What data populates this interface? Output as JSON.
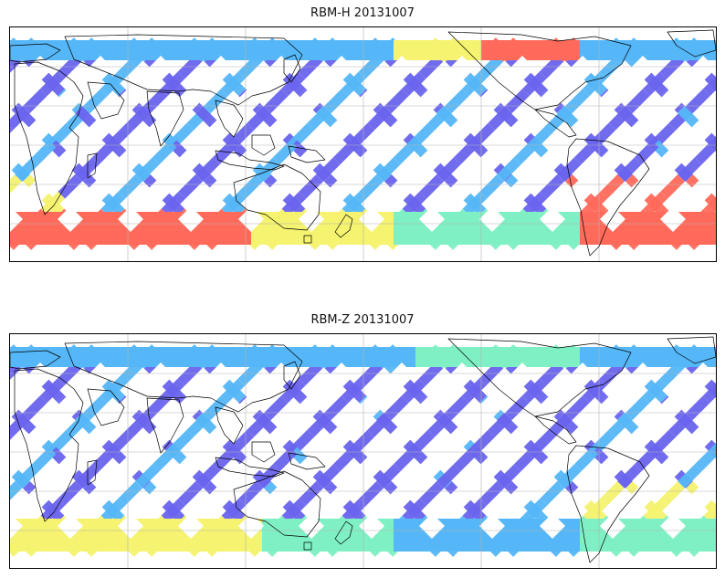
{
  "figure": {
    "panels": [
      {
        "title": "RBM-H 20131007",
        "variable": "RBM-H",
        "date": "20131007"
      },
      {
        "title": "RBM-Z 20131007",
        "variable": "RBM-Z",
        "date": "20131007"
      }
    ]
  },
  "colors": {
    "low": "#6a64ee",
    "mid_low": "#55b7f7",
    "mid": "#7ff0c4",
    "mid_high": "#f5f36f",
    "high": "#ff6a5a",
    "coastline": "#000000",
    "grid": "#b3b3b3"
  }
}
